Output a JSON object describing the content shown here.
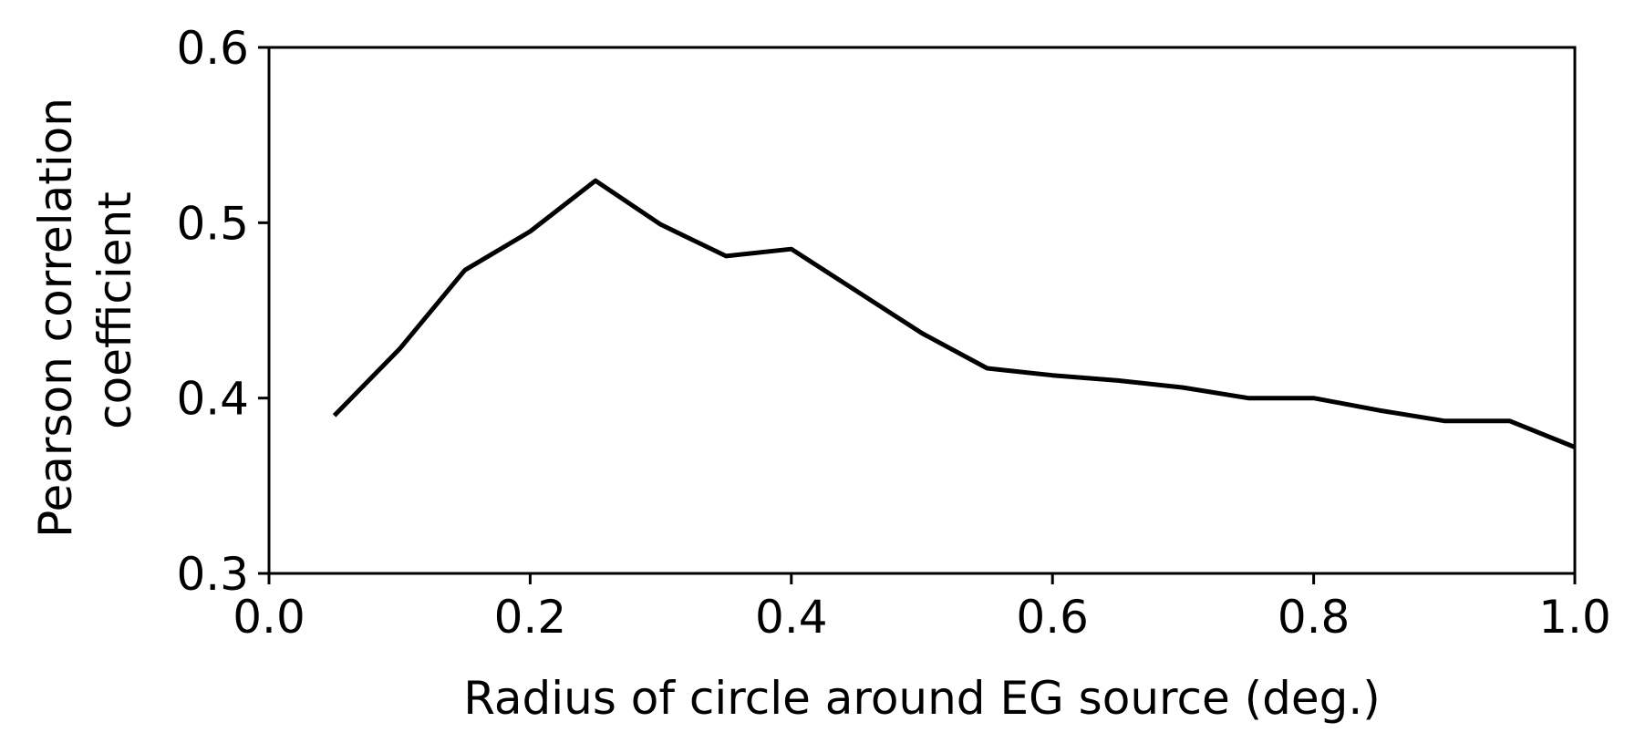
{
  "chart_data": {
    "type": "line",
    "title": "",
    "xlabel": "Radius of circle around EG source (deg.)",
    "ylabel_lines": [
      "Pearson correlation",
      "coefficient"
    ],
    "xlim": [
      0.0,
      1.0
    ],
    "ylim": [
      0.3,
      0.6
    ],
    "x_ticks": [
      0.0,
      0.2,
      0.4,
      0.6,
      0.8,
      1.0
    ],
    "x_tick_labels": [
      "0.0",
      "0.2",
      "0.4",
      "0.6",
      "0.8",
      "1.0"
    ],
    "y_ticks": [
      0.3,
      0.4,
      0.5,
      0.6
    ],
    "y_tick_labels": [
      "0.3",
      "0.4",
      "0.5",
      "0.6"
    ],
    "grid": false,
    "line_color": "#000000",
    "series": [
      {
        "x": [
          0.05,
          0.1,
          0.15,
          0.2,
          0.25,
          0.3,
          0.35,
          0.4,
          0.45,
          0.5,
          0.55,
          0.6,
          0.65,
          0.7,
          0.75,
          0.8,
          0.85,
          0.9,
          0.95,
          1.0
        ],
        "values": [
          0.39,
          0.428,
          0.473,
          0.495,
          0.524,
          0.499,
          0.481,
          0.485,
          0.461,
          0.437,
          0.417,
          0.413,
          0.41,
          0.406,
          0.4,
          0.4,
          0.393,
          0.387,
          0.387,
          0.372
        ]
      }
    ]
  }
}
